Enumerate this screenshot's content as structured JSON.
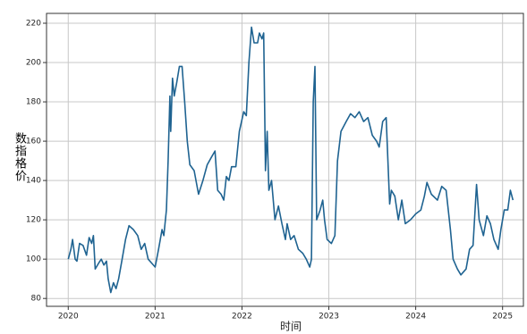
{
  "chart_data": {
    "type": "line",
    "xlabel": "时间",
    "ylabel": "数指格价",
    "x": [
      2020.0,
      2020.03,
      2020.05,
      2020.08,
      2020.1,
      2020.13,
      2020.17,
      2020.21,
      2020.24,
      2020.27,
      2020.29,
      2020.31,
      2020.35,
      2020.38,
      2020.41,
      2020.44,
      2020.46,
      2020.49,
      2020.52,
      2020.55,
      2020.58,
      2020.62,
      2020.66,
      2020.7,
      2020.75,
      2020.8,
      2020.84,
      2020.88,
      2020.92,
      2020.96,
      2021.0,
      2021.04,
      2021.08,
      2021.1,
      2021.13,
      2021.15,
      2021.17,
      2021.18,
      2021.2,
      2021.22,
      2021.25,
      2021.28,
      2021.31,
      2021.34,
      2021.37,
      2021.4,
      2021.45,
      2021.5,
      2021.55,
      2021.6,
      2021.65,
      2021.69,
      2021.72,
      2021.76,
      2021.79,
      2021.82,
      2021.85,
      2021.88,
      2021.93,
      2021.97,
      2022.02,
      2022.05,
      2022.08,
      2022.11,
      2022.14,
      2022.18,
      2022.2,
      2022.23,
      2022.25,
      2022.27,
      2022.29,
      2022.31,
      2022.34,
      2022.38,
      2022.42,
      2022.46,
      2022.5,
      2022.52,
      2022.56,
      2022.6,
      2022.65,
      2022.7,
      2022.74,
      2022.78,
      2022.8,
      2022.82,
      2022.84,
      2022.86,
      2022.9,
      2022.93,
      2022.95,
      2022.98,
      2023.03,
      2023.07,
      2023.1,
      2023.14,
      2023.2,
      2023.25,
      2023.3,
      2023.35,
      2023.4,
      2023.45,
      2023.5,
      2023.55,
      2023.58,
      2023.62,
      2023.66,
      2023.7,
      2023.72,
      2023.76,
      2023.8,
      2023.84,
      2023.88,
      2023.94,
      2024.0,
      2024.06,
      2024.1,
      2024.13,
      2024.18,
      2024.25,
      2024.3,
      2024.35,
      2024.4,
      2024.43,
      2024.48,
      2024.52,
      2024.58,
      2024.62,
      2024.66,
      2024.7,
      2024.73,
      2024.78,
      2024.82,
      2024.86,
      2024.9,
      2024.95,
      2024.98,
      2025.02,
      2025.06,
      2025.09,
      2025.12
    ],
    "series": [
      {
        "color": "#1f6391",
        "values": [
          100,
          105,
          110,
          100,
          99,
          108,
          107,
          102,
          111,
          108,
          112,
          95,
          98,
          100,
          97,
          99,
          90,
          83,
          88,
          85,
          90,
          100,
          110,
          117,
          115,
          112,
          105,
          108,
          100,
          98,
          96,
          105,
          115,
          112,
          125,
          150,
          183,
          165,
          192,
          183,
          190,
          198,
          198,
          180,
          160,
          148,
          145,
          133,
          140,
          148,
          152,
          155,
          135,
          133,
          130,
          142,
          140,
          147,
          147,
          165,
          175,
          173,
          200,
          218,
          210,
          210,
          215,
          212,
          215,
          145,
          165,
          135,
          140,
          120,
          127,
          118,
          110,
          118,
          110,
          112,
          105,
          103,
          100,
          96,
          100,
          180,
          198,
          120,
          125,
          130,
          120,
          110,
          108,
          112,
          150,
          165,
          170,
          174,
          172,
          175,
          170,
          172,
          163,
          160,
          157,
          170,
          172,
          128,
          135,
          132,
          120,
          130,
          118,
          120,
          123,
          125,
          132,
          139,
          133,
          130,
          137,
          135,
          115,
          100,
          95,
          92,
          95,
          105,
          107,
          138,
          120,
          112,
          122,
          118,
          110,
          105,
          115,
          125,
          125,
          135,
          130
        ]
      }
    ],
    "xlim": [
      2019.75,
      2025.24
    ],
    "xticks": [
      2020,
      2021,
      2022,
      2023,
      2024,
      2025
    ],
    "ylim": [
      76,
      225
    ],
    "yticks": [
      80,
      100,
      120,
      140,
      160,
      180,
      200,
      220
    ],
    "grid": true
  }
}
